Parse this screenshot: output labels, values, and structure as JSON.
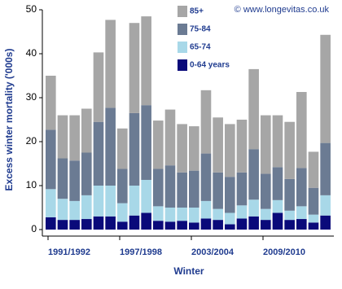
{
  "chart_data": {
    "type": "stacked-bar",
    "annotation": "© www.longevitas.co.uk",
    "x_label": "Winter",
    "y_label": "Excess winter mortality ('000s)",
    "categories": [
      "1991/1992",
      null,
      null,
      null,
      null,
      null,
      "1997/1998",
      null,
      null,
      null,
      null,
      null,
      "2003/2004",
      null,
      null,
      null,
      null,
      null,
      "2009/2010",
      null,
      null,
      null,
      null,
      null
    ],
    "ylim": [
      0,
      50
    ],
    "yticks": [
      0,
      10,
      20,
      30,
      40,
      50
    ],
    "series": [
      {
        "name": "85+",
        "color": "#a6a6a6",
        "values": [
          12.3,
          9.8,
          10.3,
          10,
          15.8,
          20,
          9.2,
          20.5,
          20.2,
          11,
          12.7,
          11,
          10.1,
          14.4,
          12.5,
          12,
          12,
          18.2,
          13.3,
          11.8,
          13,
          17.3,
          8.2,
          24.6
        ]
      },
      {
        "name": "75-84",
        "color": "#6b7b93",
        "values": [
          13.5,
          9.2,
          9.2,
          9.7,
          14.5,
          17.7,
          7.8,
          16.5,
          17,
          8.5,
          9.6,
          8,
          8.4,
          10.8,
          8.3,
          8.2,
          7.5,
          11.5,
          8,
          7.5,
          7.2,
          8.7,
          6.1,
          11.9
        ]
      },
      {
        "name": "65-74",
        "color": "#a8d8e8",
        "values": [
          6.4,
          4.8,
          4.3,
          5.4,
          7,
          7,
          4.2,
          6.8,
          7.5,
          3.3,
          3.2,
          3,
          3.4,
          4,
          2.5,
          2.6,
          3,
          3.8,
          2.5,
          2.9,
          2.1,
          2.9,
          1.8,
          4.6
        ]
      },
      {
        "name": "0-64 years",
        "color": "#0a0a7a",
        "values": [
          2.8,
          2.2,
          2.2,
          2.4,
          3,
          3,
          1.8,
          3.2,
          3.8,
          2,
          1.8,
          2,
          1.6,
          2.5,
          2.2,
          1.2,
          2.5,
          3,
          2.2,
          3.8,
          2.2,
          2.4,
          1.6,
          3.2
        ]
      }
    ]
  }
}
